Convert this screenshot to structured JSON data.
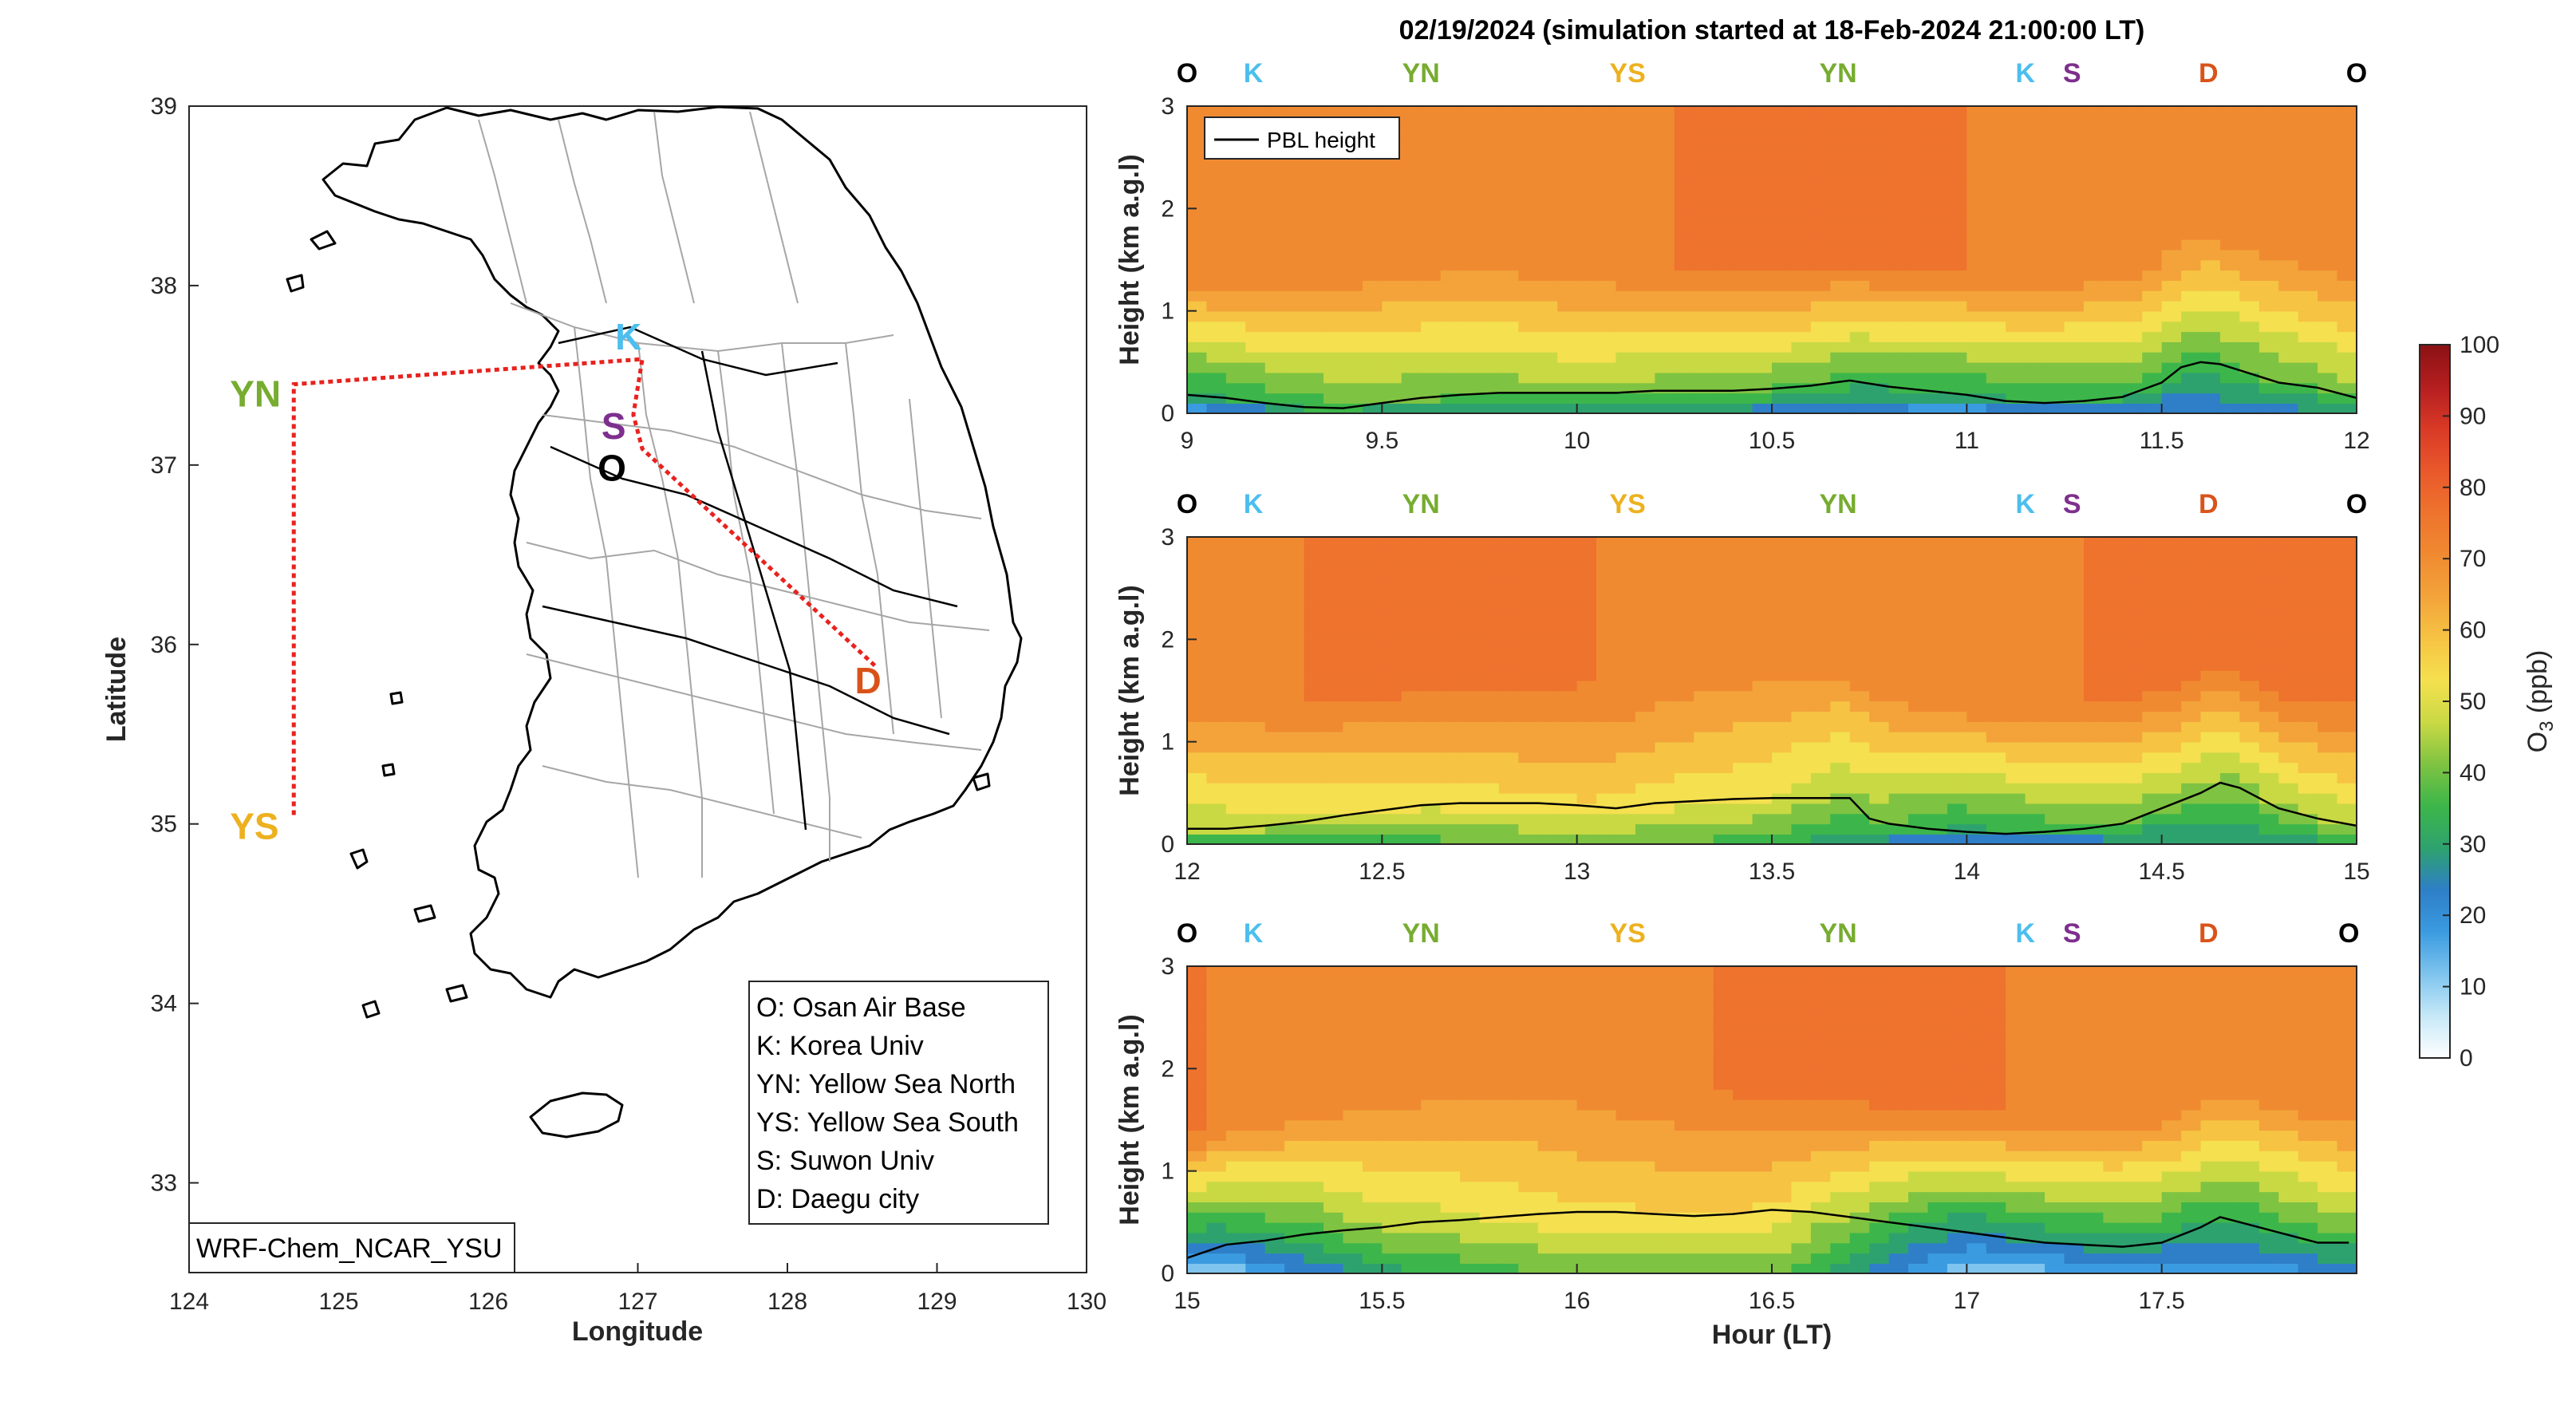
{
  "title": "02/19/2024 (simulation started at 18-Feb-2024 21:00:00 LT)",
  "map": {
    "xlabel": "Longitude",
    "ylabel": "Latitude",
    "xlim": [
      124,
      130
    ],
    "ylim": [
      32.5,
      39
    ],
    "xticks": [
      "124",
      "125",
      "126",
      "127",
      "128",
      "129",
      "130"
    ],
    "yticks": [
      "33",
      "34",
      "35",
      "36",
      "37",
      "38",
      "39"
    ],
    "model_label": "WRF-Chem_NCAR_YSU",
    "track_color": "#e8221e",
    "locations": [
      {
        "code": "YN",
        "lon": 124.7,
        "lat": 37.45,
        "color": "#77ac30"
      },
      {
        "code": "YS",
        "lon": 124.7,
        "lat": 35.05,
        "color": "#edb120"
      },
      {
        "code": "K",
        "lon": 127.03,
        "lat": 37.59,
        "color": "#4dbeee"
      },
      {
        "code": "S",
        "lon": 126.97,
        "lat": 37.28,
        "color": "#7e2f8e"
      },
      {
        "code": "O",
        "lon": 127.03,
        "lat": 37.09,
        "color": "#000000"
      },
      {
        "code": "D",
        "lon": 128.6,
        "lat": 35.87,
        "color": "#d95319"
      }
    ],
    "legend": [
      "O: Osan Air Base",
      "K: Korea Univ",
      "YN: Yellow Sea North",
      "YS: Yellow Sea South",
      "S: Suwon Univ",
      "D: Daegu city"
    ]
  },
  "chart_data": [
    {
      "type": "heatmap",
      "variable": "O3",
      "xlim": [
        9,
        12
      ],
      "ylim": [
        0,
        3
      ],
      "xticks": [
        "9",
        "9.5",
        "10",
        "10.5",
        "11",
        "11.5",
        "12"
      ],
      "yticks": [
        "0",
        "1",
        "2",
        "3"
      ],
      "ylabel": "Height (km a.g.l)",
      "legend": "PBL height",
      "legend_placement": "top-left",
      "waypoints": [
        {
          "label": "O",
          "x": 9.0
        },
        {
          "label": "K",
          "x": 9.17
        },
        {
          "label": "YN",
          "x": 9.6
        },
        {
          "label": "YS",
          "x": 10.13
        },
        {
          "label": "YN",
          "x": 10.67
        },
        {
          "label": "K",
          "x": 11.15
        },
        {
          "label": "S",
          "x": 11.27
        },
        {
          "label": "D",
          "x": 11.62
        },
        {
          "label": "O",
          "x": 12.0
        }
      ],
      "pbl_height": {
        "x": [
          9.0,
          9.1,
          9.2,
          9.3,
          9.4,
          9.5,
          9.6,
          9.7,
          9.8,
          9.9,
          10.0,
          10.1,
          10.2,
          10.3,
          10.4,
          10.5,
          10.6,
          10.7,
          10.8,
          10.9,
          11.0,
          11.1,
          11.2,
          11.3,
          11.4,
          11.5,
          11.55,
          11.6,
          11.65,
          11.7,
          11.8,
          11.9,
          12.0
        ],
        "y": [
          0.18,
          0.15,
          0.1,
          0.06,
          0.05,
          0.1,
          0.15,
          0.18,
          0.2,
          0.2,
          0.2,
          0.2,
          0.22,
          0.22,
          0.22,
          0.24,
          0.27,
          0.32,
          0.26,
          0.22,
          0.18,
          0.12,
          0.1,
          0.12,
          0.16,
          0.3,
          0.45,
          0.5,
          0.48,
          0.42,
          0.3,
          0.25,
          0.15
        ]
      },
      "profile_hint": {
        "x": [
          9.0,
          9.5,
          10.0,
          10.5,
          11.0,
          11.5,
          12.0
        ],
        "mixed_layer_o3": [
          30,
          38,
          42,
          38,
          30,
          35,
          40
        ]
      }
    },
    {
      "type": "heatmap",
      "variable": "O3",
      "xlim": [
        12,
        15
      ],
      "ylim": [
        0,
        3
      ],
      "xticks": [
        "12",
        "12.5",
        "13",
        "13.5",
        "14",
        "14.5",
        "15"
      ],
      "yticks": [
        "0",
        "1",
        "2",
        "3"
      ],
      "ylabel": "Height (km a.g.l)",
      "waypoints": [
        {
          "label": "O",
          "x": 12.0
        },
        {
          "label": "K",
          "x": 12.17
        },
        {
          "label": "YN",
          "x": 12.6
        },
        {
          "label": "YS",
          "x": 13.13
        },
        {
          "label": "YN",
          "x": 13.67
        },
        {
          "label": "K",
          "x": 14.15
        },
        {
          "label": "S",
          "x": 14.27
        },
        {
          "label": "D",
          "x": 14.62
        },
        {
          "label": "O",
          "x": 15.0
        }
      ],
      "pbl_height": {
        "x": [
          12.0,
          12.1,
          12.2,
          12.3,
          12.4,
          12.5,
          12.6,
          12.7,
          12.8,
          12.9,
          13.0,
          13.1,
          13.2,
          13.3,
          13.4,
          13.5,
          13.6,
          13.7,
          13.75,
          13.8,
          13.9,
          14.0,
          14.1,
          14.2,
          14.3,
          14.4,
          14.5,
          14.6,
          14.65,
          14.7,
          14.8,
          14.9,
          15.0
        ],
        "y": [
          0.15,
          0.15,
          0.18,
          0.22,
          0.28,
          0.33,
          0.38,
          0.4,
          0.4,
          0.4,
          0.38,
          0.35,
          0.4,
          0.42,
          0.44,
          0.45,
          0.45,
          0.45,
          0.25,
          0.2,
          0.15,
          0.12,
          0.1,
          0.12,
          0.15,
          0.2,
          0.35,
          0.5,
          0.6,
          0.55,
          0.35,
          0.25,
          0.18
        ]
      },
      "profile_hint": {
        "x": [
          12.0,
          12.5,
          13.0,
          13.5,
          14.0,
          14.5,
          15.0
        ],
        "mixed_layer_o3": [
          45,
          50,
          55,
          50,
          30,
          40,
          45
        ]
      }
    },
    {
      "type": "heatmap",
      "variable": "O3",
      "xlim": [
        15,
        18
      ],
      "ylim": [
        0,
        3
      ],
      "xticks": [
        "15",
        "15.5",
        "16",
        "16.5",
        "17",
        "17.5"
      ],
      "yticks": [
        "0",
        "1",
        "2",
        "3"
      ],
      "xlabel": "Hour (LT)",
      "ylabel": "Height (km a.g.l)",
      "waypoints": [
        {
          "label": "O",
          "x": 15.0
        },
        {
          "label": "K",
          "x": 15.17
        },
        {
          "label": "YN",
          "x": 15.6
        },
        {
          "label": "YS",
          "x": 16.13
        },
        {
          "label": "YN",
          "x": 16.67
        },
        {
          "label": "K",
          "x": 17.15
        },
        {
          "label": "S",
          "x": 17.27
        },
        {
          "label": "D",
          "x": 17.62
        },
        {
          "label": "O",
          "x": 17.98
        }
      ],
      "pbl_height": {
        "x": [
          15.0,
          15.1,
          15.2,
          15.3,
          15.4,
          15.5,
          15.6,
          15.7,
          15.8,
          15.9,
          16.0,
          16.1,
          16.2,
          16.3,
          16.4,
          16.5,
          16.6,
          16.7,
          16.8,
          16.9,
          17.0,
          17.1,
          17.2,
          17.3,
          17.4,
          17.5,
          17.6,
          17.65,
          17.7,
          17.8,
          17.9,
          17.98
        ],
        "y": [
          0.15,
          0.28,
          0.32,
          0.38,
          0.42,
          0.45,
          0.5,
          0.52,
          0.55,
          0.58,
          0.6,
          0.6,
          0.58,
          0.56,
          0.58,
          0.62,
          0.6,
          0.55,
          0.5,
          0.45,
          0.4,
          0.35,
          0.3,
          0.28,
          0.26,
          0.3,
          0.45,
          0.55,
          0.5,
          0.4,
          0.3,
          0.3
        ]
      },
      "profile_hint": {
        "x": [
          15.0,
          15.5,
          16.0,
          16.5,
          17.0,
          17.5,
          18.0
        ],
        "mixed_layer_o3": [
          20,
          45,
          55,
          55,
          25,
          30,
          35
        ]
      }
    }
  ],
  "colorbar": {
    "label": "O",
    "label_sub": "3",
    "label_unit": " (ppb)",
    "min": 0,
    "max": 100,
    "ticks": [
      "0",
      "10",
      "20",
      "30",
      "40",
      "50",
      "60",
      "70",
      "80",
      "90",
      "100"
    ],
    "colors": [
      "#ffffff",
      "#c6e8f7",
      "#7ec4ee",
      "#3b9be0",
      "#2e7fc8",
      "#2ea26e",
      "#3cb64a",
      "#7fc342",
      "#c9d944",
      "#f5e04f",
      "#f6c343",
      "#f3a33a",
      "#f08a31",
      "#ee732d",
      "#e9582b",
      "#d93a27",
      "#b41e1f",
      "#8b1114"
    ]
  }
}
